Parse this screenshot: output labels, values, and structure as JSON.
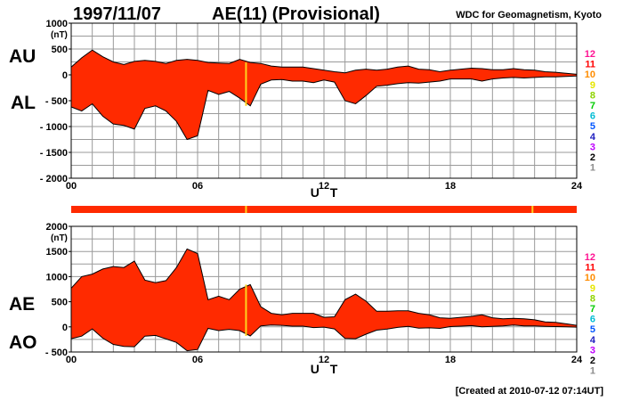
{
  "header": {
    "date": "1997/11/07",
    "index_title": "AE(11) (Provisional)",
    "source": "WDC for Geomagnetism, Kyoto"
  },
  "footer": {
    "created": "[Created at 2010-07-12 07:14UT]"
  },
  "colors": {
    "fill": "#ff2a00",
    "line": "#000000",
    "marker": "#ffd21f",
    "grid": "#9a9a9a"
  },
  "station_key": {
    "labels": [
      "12",
      "11",
      "10",
      "9",
      "8",
      "7",
      "6",
      "5",
      "4",
      "3",
      "2",
      "1"
    ],
    "colors": [
      "#ff1493",
      "#ff0000",
      "#ff8c00",
      "#e6e600",
      "#8fd400",
      "#00cc00",
      "#00bcd4",
      "#0055ff",
      "#2020c0",
      "#c000ff",
      "#000000",
      "#8c8c8c"
    ]
  },
  "chart_data": [
    {
      "type": "area",
      "panel": "AU/AL",
      "side_label_top": "AU",
      "side_label_bottom": "AL",
      "xlabel": "U T",
      "x_ticks": [
        "00",
        "06",
        "12",
        "18",
        "24"
      ],
      "x_tick_hours": [
        0,
        6,
        12,
        18,
        24
      ],
      "xlim": [
        0,
        24
      ],
      "y_unit": "(nT)",
      "ylim": [
        -2000,
        1000
      ],
      "y_ticks": [
        "1000",
        "500",
        "0",
        "- 500",
        "- 1000",
        "- 1500",
        "- 2000"
      ],
      "y_tick_values": [
        1000,
        500,
        0,
        -500,
        -1000,
        -1500,
        -2000
      ],
      "grid": true,
      "hours": [
        0,
        0.5,
        1,
        1.5,
        2,
        2.5,
        3,
        3.5,
        4,
        4.5,
        5,
        5.5,
        6,
        6.5,
        7,
        7.5,
        8,
        8.5,
        9,
        9.5,
        10,
        10.5,
        11,
        11.5,
        12,
        12.5,
        13,
        13.5,
        14,
        14.5,
        15,
        15.5,
        16,
        16.5,
        17,
        17.5,
        18,
        18.5,
        19,
        19.5,
        20,
        20.5,
        21,
        21.5,
        22,
        22.5,
        23,
        23.5,
        24
      ],
      "series": [
        {
          "name": "AU",
          "values": [
            150,
            330,
            480,
            350,
            250,
            200,
            260,
            280,
            260,
            220,
            280,
            300,
            280,
            240,
            230,
            220,
            300,
            240,
            220,
            170,
            150,
            150,
            150,
            120,
            90,
            60,
            40,
            90,
            110,
            90,
            110,
            150,
            170,
            110,
            100,
            60,
            90,
            110,
            130,
            120,
            100,
            100,
            120,
            100,
            90,
            60,
            50,
            30,
            10
          ]
        },
        {
          "name": "AL",
          "values": [
            -620,
            -700,
            -560,
            -800,
            -950,
            -980,
            -1050,
            -650,
            -600,
            -700,
            -900,
            -1250,
            -1180,
            -300,
            -380,
            -320,
            -450,
            -600,
            -180,
            -100,
            -90,
            -120,
            -120,
            -150,
            -100,
            -140,
            -500,
            -560,
            -400,
            -220,
            -200,
            -170,
            -150,
            -160,
            -140,
            -120,
            -80,
            -80,
            -80,
            -120,
            -80,
            -60,
            -50,
            -60,
            -50,
            -40,
            -40,
            -30,
            -20
          ]
        }
      ],
      "marker_hours": [
        8.3
      ]
    },
    {
      "type": "area",
      "panel": "AE/AO",
      "side_label_top": "AE",
      "side_label_bottom": "AO",
      "xlabel": "U T",
      "x_ticks": [
        "00",
        "06",
        "12",
        "18",
        "24"
      ],
      "x_tick_hours": [
        0,
        6,
        12,
        18,
        24
      ],
      "xlim": [
        0,
        24
      ],
      "y_unit": "(nT)",
      "ylim": [
        -500,
        2000
      ],
      "y_ticks": [
        "2000",
        "1500",
        "1000",
        "500",
        "0",
        "- 500"
      ],
      "y_tick_values": [
        2000,
        1500,
        1000,
        500,
        0,
        -500
      ],
      "grid": true,
      "hours": [
        0,
        0.5,
        1,
        1.5,
        2,
        2.5,
        3,
        3.5,
        4,
        4.5,
        5,
        5.5,
        6,
        6.5,
        7,
        7.5,
        8,
        8.5,
        9,
        9.5,
        10,
        10.5,
        11,
        11.5,
        12,
        12.5,
        13,
        13.5,
        14,
        14.5,
        15,
        15.5,
        16,
        16.5,
        17,
        17.5,
        18,
        18.5,
        19,
        19.5,
        20,
        20.5,
        21,
        21.5,
        22,
        22.5,
        23,
        23.5,
        24
      ],
      "series": [
        {
          "name": "AE",
          "values": [
            770,
            1000,
            1050,
            1150,
            1200,
            1180,
            1310,
            930,
            880,
            920,
            1180,
            1550,
            1460,
            540,
            610,
            540,
            750,
            840,
            400,
            270,
            240,
            270,
            270,
            270,
            190,
            200,
            540,
            650,
            510,
            310,
            310,
            320,
            320,
            270,
            240,
            180,
            170,
            190,
            210,
            240,
            180,
            160,
            170,
            160,
            140,
            100,
            90,
            60,
            30
          ]
        },
        {
          "name": "AO",
          "values": [
            -235,
            -185,
            -40,
            -225,
            -350,
            -390,
            -395,
            -185,
            -170,
            -240,
            -310,
            -475,
            -450,
            -30,
            -75,
            -50,
            -75,
            -180,
            20,
            35,
            30,
            15,
            15,
            -15,
            -5,
            -40,
            -230,
            -235,
            -145,
            -65,
            -45,
            -10,
            10,
            -25,
            -20,
            -30,
            5,
            15,
            25,
            0,
            10,
            20,
            35,
            20,
            20,
            10,
            5,
            0,
            -5
          ]
        }
      ],
      "marker_hours": [
        8.3
      ]
    }
  ]
}
